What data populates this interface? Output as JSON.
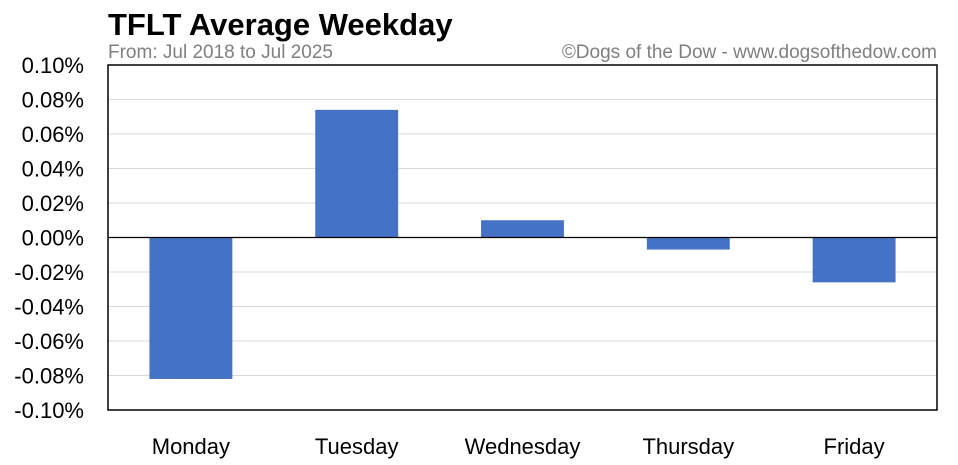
{
  "chart_data": {
    "type": "bar",
    "title": "TFLT Average Weekday",
    "subtitle": "From: Jul 2018 to Jul 2025",
    "credit": "©Dogs of the Dow - www.dogsofthedow.com",
    "categories": [
      "Monday",
      "Tuesday",
      "Wednesday",
      "Thursday",
      "Friday"
    ],
    "values": [
      -0.082,
      0.074,
      0.01,
      -0.007,
      -0.026
    ],
    "unit": "%",
    "ylim": [
      -0.1,
      0.1
    ],
    "yticks": [
      0.1,
      0.08,
      0.06,
      0.04,
      0.02,
      0.0,
      -0.02,
      -0.04,
      -0.06,
      -0.08,
      -0.1
    ],
    "ytick_labels": [
      "0.10%",
      "0.08%",
      "0.06%",
      "0.04%",
      "0.02%",
      "0.00%",
      "-0.02%",
      "-0.04%",
      "-0.06%",
      "-0.08%",
      "-0.10%"
    ],
    "xlabel": "",
    "ylabel": "",
    "grid": true,
    "bar_color": "#4472c4"
  }
}
